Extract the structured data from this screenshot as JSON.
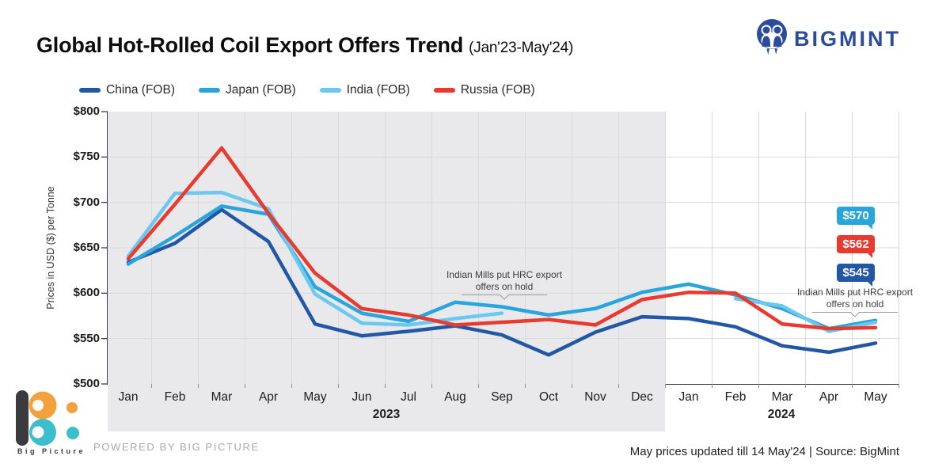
{
  "header": {
    "title": "Global Hot-Rolled Coil Export Offers Trend",
    "subtitle": "(Jan'23-May'24)",
    "brand": "BIGMINT",
    "brand_color": "#2B4C9E"
  },
  "chart_data": {
    "type": "line",
    "title": "Global Hot-Rolled Coil Export Offers Trend (Jan'23-May'24)",
    "xlabel": "",
    "ylabel": "Prices in USD ($) per Tonne",
    "ylim": [
      500,
      800
    ],
    "y_tick_step": 50,
    "y_ticks": [
      "$800",
      "$750",
      "$700",
      "$650",
      "$600",
      "$550",
      "$500"
    ],
    "grid": true,
    "legend_position": "top",
    "categories": [
      "Jan",
      "Feb",
      "Mar",
      "Apr",
      "May",
      "Jun",
      "Jul",
      "Aug",
      "Sep",
      "Oct",
      "Nov",
      "Dec",
      "Jan",
      "Feb",
      "Mar",
      "Apr",
      "May"
    ],
    "year_bands": [
      {
        "label": "2023",
        "from": "Jan",
        "to": "Dec",
        "shaded": true
      },
      {
        "label": "2024",
        "from": "Jan",
        "to": "May",
        "shaded": false
      }
    ],
    "shaded_region": {
      "label": "2023",
      "color": "#E9E9EB"
    },
    "series": [
      {
        "name": "China (FOB)",
        "color": "#2257A5",
        "values": [
          634,
          655,
          692,
          657,
          566,
          553,
          558,
          564,
          554,
          532,
          557,
          574,
          572,
          563,
          542,
          535,
          545
        ]
      },
      {
        "name": "Japan (FOB)",
        "color": "#29A5DE",
        "values": [
          632,
          663,
          696,
          687,
          607,
          578,
          569,
          590,
          585,
          576,
          583,
          601,
          610,
          598,
          583,
          561,
          570
        ]
      },
      {
        "name": "India (FOB)",
        "color": "#6AC8F1",
        "values": [
          641,
          710,
          711,
          693,
          599,
          567,
          565,
          572,
          578,
          null,
          null,
          null,
          null,
          594,
          586,
          558,
          568
        ]
      },
      {
        "name": "Russia (FOB)",
        "color": "#E93A30",
        "values": [
          638,
          698,
          760,
          688,
          622,
          583,
          576,
          565,
          568,
          571,
          565,
          593,
          601,
          600,
          566,
          561,
          562
        ]
      }
    ],
    "annotations": [
      {
        "text": "Indian Mills put HRC export offers on hold",
        "anchor_category_index": 8
      },
      {
        "text": "Indian Mills put HRC export offers on hold",
        "anchor_category_index": 15
      }
    ],
    "end_labels": [
      {
        "text": "$570",
        "series": "Japan (FOB)",
        "color": "#29A5DE"
      },
      {
        "text": "$562",
        "series": "Russia (FOB)",
        "color": "#E93A30"
      },
      {
        "text": "$545",
        "series": "China (FOB)",
        "color": "#2257A5"
      }
    ]
  },
  "footer": {
    "updated": "May prices updated till 14 May'24 |  Source: BigMint",
    "powered_by": "POWERED BY BIG PICTURE",
    "logo_text": "Big Picture"
  }
}
